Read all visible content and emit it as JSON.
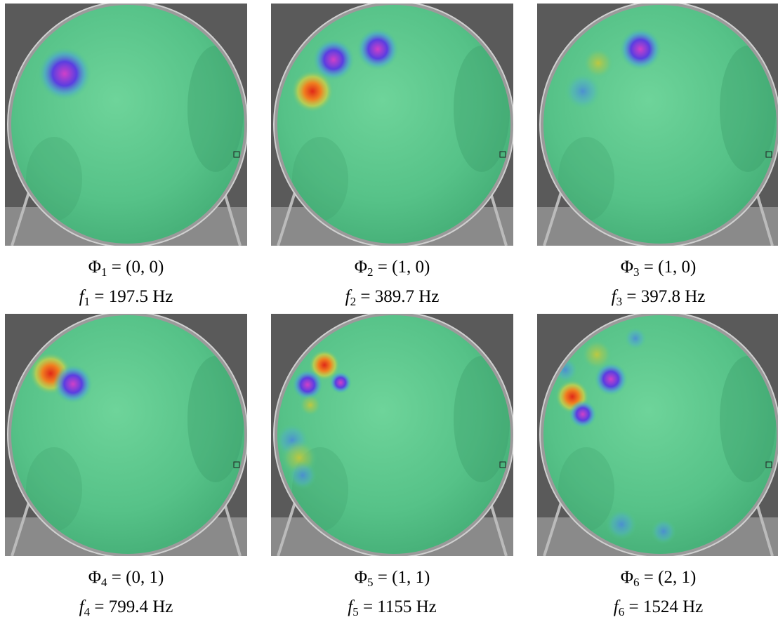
{
  "figure": {
    "panels": [
      {
        "mode": {
          "base": "Φ",
          "sub": "1",
          "rest": " = (0, 0)"
        },
        "freq": {
          "base": "f",
          "sub": "1",
          "rest": " = 197.5 Hz"
        }
      },
      {
        "mode": {
          "base": "Φ",
          "sub": "2",
          "rest": " = (1, 0)"
        },
        "freq": {
          "base": "f",
          "sub": "2",
          "rest": " = 389.7 Hz"
        }
      },
      {
        "mode": {
          "base": "Φ",
          "sub": "3",
          "rest": " = (1, 0)"
        },
        "freq": {
          "base": "f",
          "sub": "3",
          "rest": " = 397.8 Hz"
        }
      },
      {
        "mode": {
          "base": "Φ",
          "sub": "4",
          "rest": " = (0, 1)"
        },
        "freq": {
          "base": "f",
          "sub": "4",
          "rest": " = 799.4 Hz"
        }
      },
      {
        "mode": {
          "base": "Φ",
          "sub": "5",
          "rest": " = (1, 1)"
        },
        "freq": {
          "base": "f",
          "sub": "5",
          "rest": " = 1155 Hz"
        }
      },
      {
        "mode": {
          "base": "Φ",
          "sub": "6",
          "rest": " = (2, 1)"
        },
        "freq": {
          "base": "f",
          "sub": "6",
          "rest": " = 1524 Hz"
        }
      }
    ]
  }
}
